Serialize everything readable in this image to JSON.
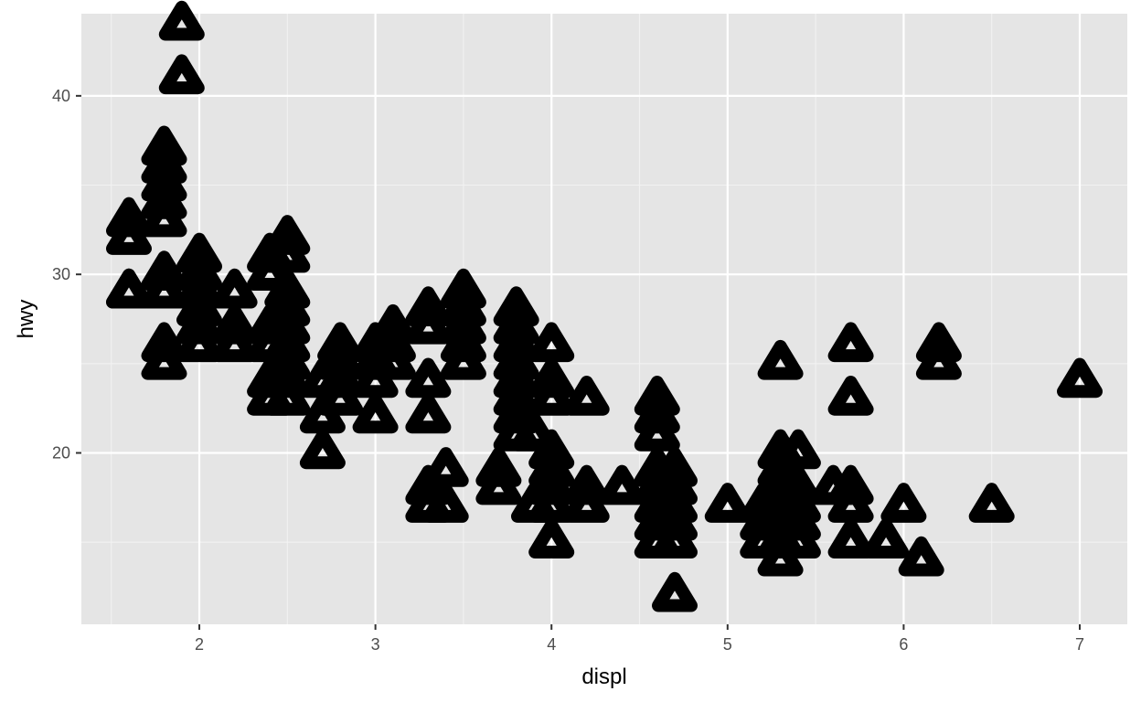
{
  "chart_data": {
    "type": "scatter",
    "xlabel": "displ",
    "ylabel": "hwy",
    "xlim": [
      1.33,
      7.27
    ],
    "ylim": [
      10.4,
      44.6
    ],
    "x_ticks": [
      2,
      3,
      4,
      5,
      6,
      7
    ],
    "y_ticks": [
      20,
      30,
      40
    ],
    "grid": true,
    "marker": "open-triangle",
    "colors": {
      "panel": "#e5e5e5",
      "grid_major": "#ffffff",
      "grid_minor": "#f2f2f2",
      "marker": "#000000",
      "tick_label": "#4d4d4d",
      "axis_title": "#000000"
    },
    "series": [
      {
        "points": [
          [
            1.6,
            33
          ],
          [
            1.6,
            32
          ],
          [
            1.6,
            29
          ],
          [
            1.6,
            29
          ],
          [
            1.8,
            29
          ],
          [
            1.8,
            29
          ],
          [
            1.8,
            26
          ],
          [
            1.8,
            25
          ],
          [
            1.8,
            30
          ],
          [
            1.8,
            36
          ],
          [
            1.8,
            37
          ],
          [
            1.8,
            35
          ],
          [
            1.8,
            34
          ],
          [
            1.8,
            33
          ],
          [
            1.9,
            44
          ],
          [
            1.9,
            41
          ],
          [
            2.0,
            31
          ],
          [
            2.0,
            30
          ],
          [
            2.0,
            28
          ],
          [
            2.0,
            29
          ],
          [
            2.0,
            26
          ],
          [
            2.0,
            27
          ],
          [
            2.2,
            29
          ],
          [
            2.2,
            27
          ],
          [
            2.2,
            26
          ],
          [
            2.4,
            31
          ],
          [
            2.4,
            30
          ],
          [
            2.4,
            27
          ],
          [
            2.4,
            26
          ],
          [
            2.4,
            24
          ],
          [
            2.4,
            23
          ],
          [
            2.5,
            32
          ],
          [
            2.5,
            31
          ],
          [
            2.5,
            29
          ],
          [
            2.5,
            28
          ],
          [
            2.5,
            27
          ],
          [
            2.5,
            26
          ],
          [
            2.5,
            25
          ],
          [
            2.5,
            24
          ],
          [
            2.5,
            23
          ],
          [
            2.7,
            24
          ],
          [
            2.7,
            22
          ],
          [
            2.7,
            20
          ],
          [
            2.8,
            26
          ],
          [
            2.8,
            25
          ],
          [
            2.8,
            24
          ],
          [
            2.8,
            23
          ],
          [
            3.0,
            26
          ],
          [
            3.0,
            25
          ],
          [
            3.0,
            24
          ],
          [
            3.0,
            22
          ],
          [
            3.1,
            27
          ],
          [
            3.1,
            26
          ],
          [
            3.1,
            25
          ],
          [
            3.3,
            28
          ],
          [
            3.3,
            27
          ],
          [
            3.3,
            24
          ],
          [
            3.3,
            22
          ],
          [
            3.3,
            17
          ],
          [
            3.3,
            18
          ],
          [
            3.4,
            19
          ],
          [
            3.4,
            17
          ],
          [
            3.5,
            29
          ],
          [
            3.5,
            28
          ],
          [
            3.5,
            27
          ],
          [
            3.5,
            26
          ],
          [
            3.5,
            25
          ],
          [
            3.7,
            19
          ],
          [
            3.7,
            18
          ],
          [
            3.8,
            28
          ],
          [
            3.8,
            27
          ],
          [
            3.8,
            26
          ],
          [
            3.8,
            25
          ],
          [
            3.8,
            24
          ],
          [
            3.8,
            23
          ],
          [
            3.8,
            22
          ],
          [
            3.8,
            21
          ],
          [
            3.9,
            21
          ],
          [
            3.9,
            17
          ],
          [
            4.0,
            26
          ],
          [
            4.0,
            24
          ],
          [
            4.0,
            23
          ],
          [
            4.0,
            20
          ],
          [
            4.0,
            19
          ],
          [
            4.0,
            18
          ],
          [
            4.0,
            17
          ],
          [
            4.0,
            15
          ],
          [
            4.2,
            23
          ],
          [
            4.2,
            18
          ],
          [
            4.2,
            17
          ],
          [
            4.4,
            18
          ],
          [
            4.6,
            23
          ],
          [
            4.6,
            22
          ],
          [
            4.6,
            21
          ],
          [
            4.6,
            19
          ],
          [
            4.6,
            18
          ],
          [
            4.6,
            17
          ],
          [
            4.6,
            16
          ],
          [
            4.6,
            15
          ],
          [
            4.7,
            19
          ],
          [
            4.7,
            18
          ],
          [
            4.7,
            17
          ],
          [
            4.7,
            16
          ],
          [
            4.7,
            15
          ],
          [
            4.7,
            12
          ],
          [
            5.0,
            17
          ],
          [
            5.2,
            17
          ],
          [
            5.2,
            16
          ],
          [
            5.2,
            15
          ],
          [
            5.3,
            25
          ],
          [
            5.3,
            20
          ],
          [
            5.3,
            19
          ],
          [
            5.3,
            18
          ],
          [
            5.3,
            17
          ],
          [
            5.3,
            16
          ],
          [
            5.3,
            15
          ],
          [
            5.3,
            14
          ],
          [
            5.4,
            20
          ],
          [
            5.4,
            18
          ],
          [
            5.4,
            17
          ],
          [
            5.4,
            16
          ],
          [
            5.4,
            15
          ],
          [
            5.6,
            18
          ],
          [
            5.7,
            26
          ],
          [
            5.7,
            23
          ],
          [
            5.7,
            18
          ],
          [
            5.7,
            17
          ],
          [
            5.7,
            15
          ],
          [
            5.9,
            15
          ],
          [
            6.0,
            17
          ],
          [
            6.1,
            14
          ],
          [
            6.2,
            26
          ],
          [
            6.2,
            25
          ],
          [
            6.5,
            17
          ],
          [
            7.0,
            24
          ]
        ]
      }
    ]
  }
}
